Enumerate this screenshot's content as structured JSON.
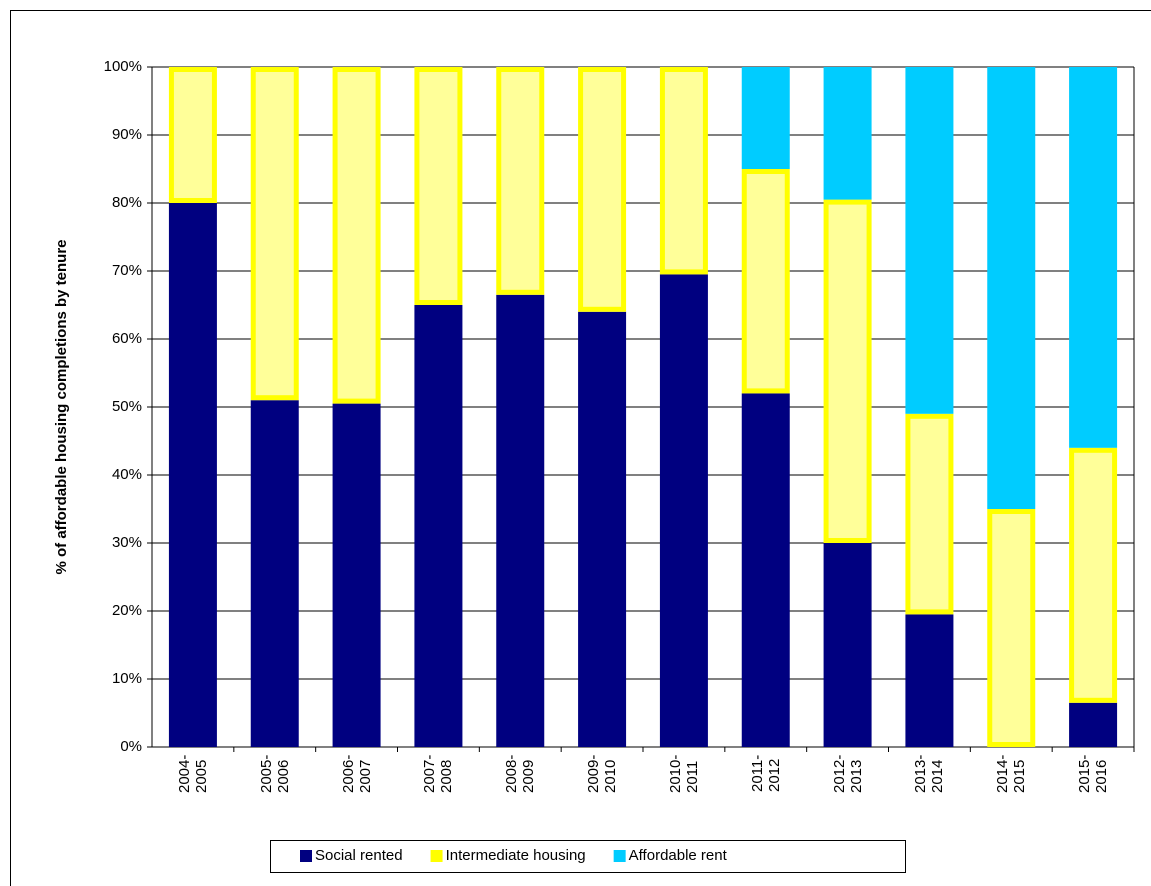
{
  "chart_data": {
    "type": "stacked_bar",
    "ylabel": "% of affordable housing completions  by tenure",
    "categories": [
      "2004-\n2005",
      "2005-\n2006",
      "2006-\n2007",
      "2007-\n2008",
      "2008-\n2009",
      "2009-\n2010",
      "2010-\n2011",
      "2011-\n2012",
      "2012-\n2013",
      "2013-\n2014",
      "2014-\n2015",
      "2015-\n2016"
    ],
    "series": [
      {
        "name": "Social rented",
        "color": "#000080",
        "values": [
          80,
          51,
          50.5,
          65,
          66.5,
          64,
          69.5,
          52,
          30,
          19.5,
          0,
          6.5
        ]
      },
      {
        "name": "Intermediate housing",
        "color": "#ffff99",
        "edgecolor": "#ffff00",
        "values": [
          20,
          49,
          49.5,
          35,
          33.5,
          36,
          30.5,
          33,
          50.5,
          29.5,
          35,
          37.5
        ]
      },
      {
        "name": "Affordable rent",
        "color": "#00ccff",
        "values": [
          0,
          0,
          0,
          0,
          0,
          0,
          0,
          15,
          19.5,
          51,
          65,
          56
        ]
      }
    ],
    "ylim": [
      0,
      100
    ],
    "yticks": [
      {
        "value": 0,
        "label": "0%"
      },
      {
        "value": 10,
        "label": "10%"
      },
      {
        "value": 20,
        "label": "20%"
      },
      {
        "value": 30,
        "label": "30%"
      },
      {
        "value": 40,
        "label": "40%"
      },
      {
        "value": 50,
        "label": "50%"
      },
      {
        "value": 60,
        "label": "60%"
      },
      {
        "value": 70,
        "label": "70%"
      },
      {
        "value": 80,
        "label": "80%"
      },
      {
        "value": 90,
        "label": "90%"
      },
      {
        "value": 100,
        "label": "100%"
      }
    ],
    "grid": true,
    "legend": "bottom"
  }
}
